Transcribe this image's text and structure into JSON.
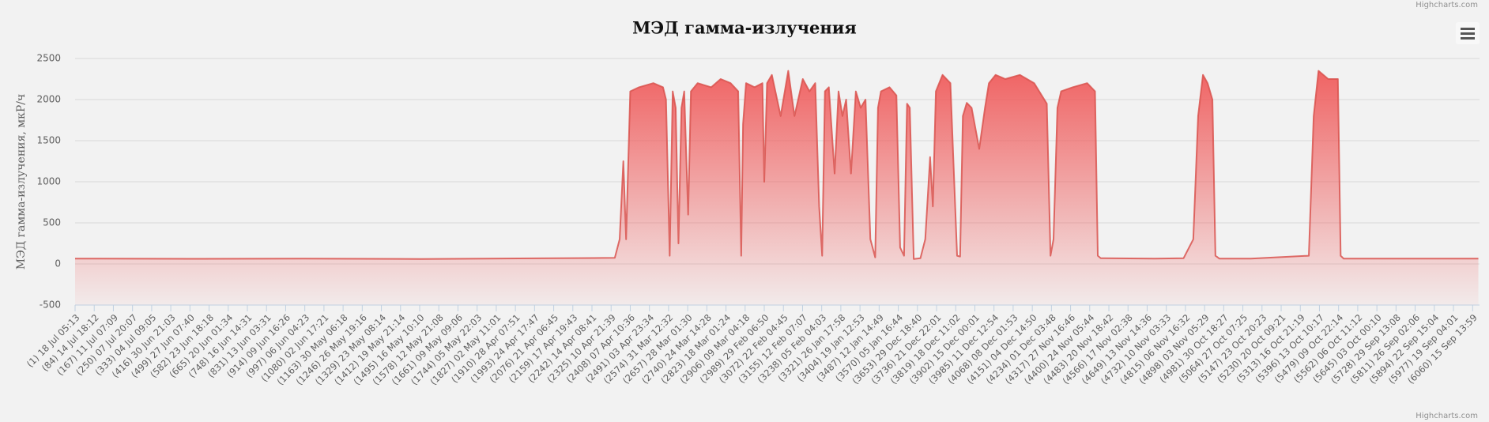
{
  "chart_data": {
    "type": "area",
    "title": "МЭД гамма-излучения",
    "y_label": "МЭД гамма-излучения, мкР/ч",
    "credits": "Highcharts.com",
    "color": "#d9534f",
    "grid": true,
    "ylim": [
      -500,
      2500
    ],
    "yticks": [
      -500,
      0,
      500,
      1000,
      1500,
      2000,
      2500
    ],
    "xlim": [
      1,
      6090
    ],
    "xticks": [
      {
        "value": 1,
        "label": "(1) 18 Jul 05:13"
      },
      {
        "value": 84,
        "label": "(84) 14 Jul 18:12"
      },
      {
        "value": 167,
        "label": "(167) 11 Jul 07:09"
      },
      {
        "value": 250,
        "label": "(250) 07 Jul 20:07"
      },
      {
        "value": 333,
        "label": "(333) 04 Jul 09:05"
      },
      {
        "value": 416,
        "label": "(416) 30 Jun 21:03"
      },
      {
        "value": 499,
        "label": "(499) 27 Jun 07:40"
      },
      {
        "value": 582,
        "label": "(582) 23 Jun 18:18"
      },
      {
        "value": 665,
        "label": "(665) 20 Jun 01:34"
      },
      {
        "value": 748,
        "label": "(748) 16 Jun 14:31"
      },
      {
        "value": 831,
        "label": "(831) 13 Jun 03:31"
      },
      {
        "value": 914,
        "label": "(914) 09 Jun 16:26"
      },
      {
        "value": 997,
        "label": "(997) 06 Jun 04:23"
      },
      {
        "value": 1080,
        "label": "(1080) 02 Jun 17:21"
      },
      {
        "value": 1163,
        "label": "(1163) 30 May 06:18"
      },
      {
        "value": 1246,
        "label": "(1246) 26 May 19:16"
      },
      {
        "value": 1329,
        "label": "(1329) 23 May 08:14"
      },
      {
        "value": 1412,
        "label": "(1412) 19 May 21:14"
      },
      {
        "value": 1495,
        "label": "(1495) 16 May 10:10"
      },
      {
        "value": 1578,
        "label": "(1578) 12 May 21:08"
      },
      {
        "value": 1661,
        "label": "(1661) 09 May 09:06"
      },
      {
        "value": 1744,
        "label": "(1744) 05 May 22:03"
      },
      {
        "value": 1827,
        "label": "(1827) 02 May 11:01"
      },
      {
        "value": 1910,
        "label": "(1910) 28 Apr 07:51"
      },
      {
        "value": 1993,
        "label": "(1993) 24 Apr 17:47"
      },
      {
        "value": 2076,
        "label": "(2076) 21 Apr 06:45"
      },
      {
        "value": 2159,
        "label": "(2159) 17 Apr 19:43"
      },
      {
        "value": 2242,
        "label": "(2242) 14 Apr 08:41"
      },
      {
        "value": 2325,
        "label": "(2325) 10 Apr 21:39"
      },
      {
        "value": 2408,
        "label": "(2408) 07 Apr 10:36"
      },
      {
        "value": 2491,
        "label": "(2491) 03 Apr 23:34"
      },
      {
        "value": 2574,
        "label": "(2574) 31 Mar 12:32"
      },
      {
        "value": 2657,
        "label": "(2657) 28 Mar 01:30"
      },
      {
        "value": 2740,
        "label": "(2740) 24 Mar 14:28"
      },
      {
        "value": 2823,
        "label": "(2823) 18 Mar 01:24"
      },
      {
        "value": 2906,
        "label": "(2906) 09 Mar 04:18"
      },
      {
        "value": 2989,
        "label": "(2989) 29 Feb 06:50"
      },
      {
        "value": 3072,
        "label": "(3072) 22 Feb 04:45"
      },
      {
        "value": 3155,
        "label": "(3155) 12 Feb 07:07"
      },
      {
        "value": 3238,
        "label": "(3238) 05 Feb 04:03"
      },
      {
        "value": 3321,
        "label": "(3321) 26 Jan 17:58"
      },
      {
        "value": 3404,
        "label": "(3404) 19 Jan 12:53"
      },
      {
        "value": 3487,
        "label": "(3487) 12 Jan 14:49"
      },
      {
        "value": 3570,
        "label": "(3570) 05 Jan 16:44"
      },
      {
        "value": 3653,
        "label": "(3653) 29 Dec 18:40"
      },
      {
        "value": 3736,
        "label": "(3736) 21 Dec 22:01"
      },
      {
        "value": 3819,
        "label": "(3819) 18 Dec 11:02"
      },
      {
        "value": 3902,
        "label": "(3902) 15 Dec 00:01"
      },
      {
        "value": 3985,
        "label": "(3985) 11 Dec 12:54"
      },
      {
        "value": 4068,
        "label": "(4068) 08 Dec 01:53"
      },
      {
        "value": 4151,
        "label": "(4151) 04 Dec 14:50"
      },
      {
        "value": 4234,
        "label": "(4234) 01 Dec 03:48"
      },
      {
        "value": 4317,
        "label": "(4317) 27 Nov 16:46"
      },
      {
        "value": 4400,
        "label": "(4400) 24 Nov 05:44"
      },
      {
        "value": 4483,
        "label": "(4483) 20 Nov 18:42"
      },
      {
        "value": 4566,
        "label": "(4566) 17 Nov 02:38"
      },
      {
        "value": 4649,
        "label": "(4649) 13 Nov 14:36"
      },
      {
        "value": 4732,
        "label": "(4732) 10 Nov 03:33"
      },
      {
        "value": 4815,
        "label": "(4815) 06 Nov 16:32"
      },
      {
        "value": 4898,
        "label": "(4898) 03 Nov 05:29"
      },
      {
        "value": 4981,
        "label": "(4981) 30 Oct 18:27"
      },
      {
        "value": 5064,
        "label": "(5064) 27 Oct 07:25"
      },
      {
        "value": 5147,
        "label": "(5147) 23 Oct 20:23"
      },
      {
        "value": 5230,
        "label": "(5230) 20 Oct 09:21"
      },
      {
        "value": 5313,
        "label": "(5313) 16 Oct 21:19"
      },
      {
        "value": 5396,
        "label": "(5396) 13 Oct 10:17"
      },
      {
        "value": 5479,
        "label": "(5479) 09 Oct 22:14"
      },
      {
        "value": 5562,
        "label": "(5562) 06 Oct 11:12"
      },
      {
        "value": 5645,
        "label": "(5645) 03 Oct 00:10"
      },
      {
        "value": 5728,
        "label": "(5728) 29 Sep 13:08"
      },
      {
        "value": 5811,
        "label": "(5811) 26 Sep 02:06"
      },
      {
        "value": 5894,
        "label": "(5894) 22 Sep 15:04"
      },
      {
        "value": 5977,
        "label": "(5977) 19 Sep 04:01"
      },
      {
        "value": 6060,
        "label": "(6060) 15 Sep 13:59"
      }
    ],
    "x": [
      1,
      500,
      1000,
      1500,
      2000,
      2250,
      2341,
      2362,
      2378,
      2390,
      2408,
      2446,
      2508,
      2550,
      2563,
      2579,
      2592,
      2605,
      2617,
      2630,
      2642,
      2659,
      2671,
      2700,
      2759,
      2800,
      2843,
      2876,
      2889,
      2897,
      2910,
      2947,
      2981,
      2989,
      3001,
      3022,
      3060,
      3093,
      3120,
      3156,
      3185,
      3210,
      3227,
      3240,
      3252,
      3269,
      3294,
      3311,
      3328,
      3344,
      3365,
      3386,
      3407,
      3428,
      3449,
      3470,
      3482,
      3495,
      3532,
      3562,
      3578,
      3595,
      3608,
      3620,
      3637,
      3666,
      3687,
      3708,
      3720,
      3733,
      3762,
      3796,
      3825,
      3838,
      3850,
      3867,
      3888,
      3921,
      3946,
      3963,
      3992,
      4034,
      4097,
      4159,
      4214,
      4230,
      4243,
      4260,
      4276,
      4326,
      4389,
      4423,
      4435,
      4448,
      4682,
      4807,
      4849,
      4870,
      4891,
      4911,
      4932,
      4945,
      4962,
      5099,
      5350,
      5371,
      5392,
      5434,
      5476,
      5488,
      5501,
      6085
    ],
    "values": [
      65,
      62,
      65,
      60,
      68,
      72,
      75,
      300,
      1250,
      300,
      2100,
      2150,
      2200,
      2150,
      2000,
      100,
      2100,
      1900,
      250,
      1900,
      2100,
      600,
      2100,
      2200,
      2150,
      2250,
      2200,
      2100,
      100,
      1700,
      2200,
      2150,
      2200,
      1000,
      2200,
      2300,
      1800,
      2350,
      1800,
      2250,
      2100,
      2200,
      700,
      100,
      2100,
      2150,
      1100,
      2100,
      1800,
      2000,
      1100,
      2100,
      1900,
      2000,
      300,
      80,
      1900,
      2100,
      2150,
      2050,
      200,
      100,
      1950,
      1900,
      60,
      70,
      300,
      1300,
      700,
      2100,
      2300,
      2200,
      100,
      90,
      1800,
      1960,
      1900,
      1400,
      1900,
      2200,
      2300,
      2250,
      2300,
      2200,
      1950,
      100,
      300,
      1900,
      2100,
      2150,
      2200,
      2100,
      100,
      70,
      65,
      70,
      300,
      1800,
      2300,
      2200,
      2000,
      100,
      65,
      65,
      100,
      1800,
      2350,
      2250,
      2250,
      100,
      65,
      65
    ]
  }
}
